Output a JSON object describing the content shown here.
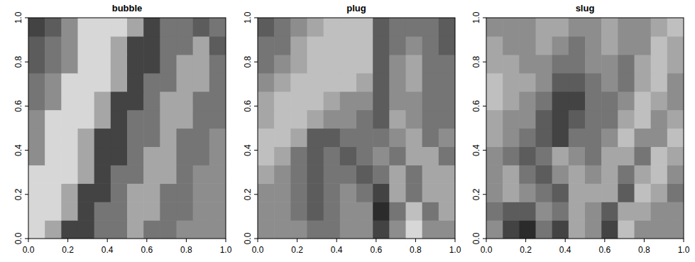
{
  "chart_data": [
    {
      "type": "heatmap",
      "title": "bubble",
      "xlim": [
        0,
        1
      ],
      "ylim": [
        0,
        1
      ],
      "zlim": [
        0,
        9
      ],
      "xticks": [
        {
          "value": 0,
          "label": "0.0"
        },
        {
          "value": 0.2,
          "label": "0.2"
        },
        {
          "value": 0.4,
          "label": "0.4"
        },
        {
          "value": 0.6,
          "label": "0.6"
        },
        {
          "value": 0.8,
          "label": "0.8"
        },
        {
          "value": 1,
          "label": "1.0"
        }
      ],
      "yticks": [
        {
          "value": 0,
          "label": "0.0"
        },
        {
          "value": 0.2,
          "label": "0.2"
        },
        {
          "value": 0.4,
          "label": "0.4"
        },
        {
          "value": 0.6,
          "label": "0.6"
        },
        {
          "value": 0.8,
          "label": "0.8"
        },
        {
          "value": 1,
          "label": "1.0"
        }
      ],
      "cells": [
        [
          8,
          6,
          2,
          2,
          4,
          4,
          6,
          4,
          4,
          5,
          5,
          5
        ],
        [
          8,
          8,
          6,
          2,
          4,
          4,
          6,
          6,
          4,
          4,
          5,
          5
        ],
        [
          8,
          8,
          6,
          2,
          2,
          4,
          6,
          6,
          4,
          4,
          5,
          5
        ],
        [
          8,
          8,
          8,
          6,
          2,
          4,
          4,
          6,
          6,
          4,
          5,
          5
        ],
        [
          5,
          8,
          8,
          6,
          2,
          2,
          4,
          6,
          6,
          4,
          4,
          5
        ],
        [
          5,
          8,
          8,
          6,
          2,
          2,
          4,
          4,
          6,
          4,
          4,
          5
        ],
        [
          5,
          8,
          8,
          8,
          6,
          2,
          4,
          4,
          6,
          6,
          4,
          4
        ],
        [
          4,
          5,
          8,
          8,
          6,
          2,
          2,
          4,
          6,
          6,
          4,
          4
        ],
        [
          4,
          5,
          8,
          8,
          8,
          6,
          2,
          4,
          4,
          6,
          6,
          4
        ],
        [
          3,
          4,
          5,
          8,
          8,
          6,
          2,
          2,
          4,
          6,
          6,
          4
        ],
        [
          3,
          4,
          5,
          8,
          8,
          6,
          2,
          2,
          4,
          4,
          6,
          3
        ],
        [
          2,
          3,
          5,
          8,
          8,
          8,
          6,
          2,
          4,
          4,
          3,
          4
        ]
      ]
    },
    {
      "type": "heatmap",
      "title": "plug",
      "xlim": [
        0,
        1
      ],
      "ylim": [
        0,
        1
      ],
      "zlim": [
        0,
        9
      ],
      "xticks": [
        {
          "value": 0,
          "label": "0.0"
        },
        {
          "value": 0.2,
          "label": "0.2"
        },
        {
          "value": 0.4,
          "label": "0.4"
        },
        {
          "value": 0.6,
          "label": "0.6"
        },
        {
          "value": 0.8,
          "label": "0.8"
        },
        {
          "value": 1,
          "label": "1.0"
        }
      ],
      "yticks": [
        {
          "value": 0,
          "label": "0.0"
        },
        {
          "value": 0.2,
          "label": "0.2"
        },
        {
          "value": 0.4,
          "label": "0.4"
        },
        {
          "value": 0.6,
          "label": "0.6"
        },
        {
          "value": 0.8,
          "label": "0.8"
        },
        {
          "value": 1,
          "label": "1.0"
        }
      ],
      "cells": [
        [
          5,
          5,
          5,
          4,
          4,
          5,
          5,
          2,
          5,
          8,
          5,
          5
        ],
        [
          5,
          5,
          4,
          3,
          4,
          5,
          5,
          1,
          4,
          7,
          4,
          6
        ],
        [
          5,
          5,
          4,
          3,
          4,
          5,
          4,
          2,
          6,
          4,
          6,
          6
        ],
        [
          6,
          5,
          4,
          3,
          4,
          4,
          3,
          4,
          6,
          4,
          6,
          6
        ],
        [
          7,
          6,
          4,
          3,
          4,
          3,
          4,
          5,
          4,
          6,
          6,
          4
        ],
        [
          7,
          7,
          6,
          3,
          3,
          4,
          4,
          4,
          5,
          6,
          4,
          5
        ],
        [
          6,
          7,
          7,
          6,
          5,
          5,
          4,
          3,
          6,
          5,
          4,
          4
        ],
        [
          6,
          7,
          7,
          7,
          6,
          5,
          5,
          3,
          5,
          5,
          4,
          4
        ],
        [
          5,
          6,
          7,
          7,
          7,
          7,
          6,
          3,
          5,
          6,
          4,
          4
        ],
        [
          4,
          5,
          6,
          7,
          7,
          7,
          7,
          3,
          5,
          6,
          4,
          4
        ],
        [
          4,
          4,
          6,
          7,
          7,
          7,
          7,
          3,
          4,
          5,
          4,
          3
        ],
        [
          3,
          4,
          5,
          6,
          7,
          7,
          7,
          3,
          4,
          4,
          4,
          3
        ]
      ]
    },
    {
      "type": "heatmap",
      "title": "slug",
      "xlim": [
        0,
        1
      ],
      "ylim": [
        0,
        1
      ],
      "zlim": [
        0,
        9
      ],
      "xticks": [
        {
          "value": 0,
          "label": "0.0"
        },
        {
          "value": 0.2,
          "label": "0.2"
        },
        {
          "value": 0.4,
          "label": "0.4"
        },
        {
          "value": 0.6,
          "label": "0.6"
        },
        {
          "value": 0.8,
          "label": "0.8"
        },
        {
          "value": 1,
          "label": "1.0"
        }
      ],
      "yticks": [
        {
          "value": 0,
          "label": "0.0"
        },
        {
          "value": 0.2,
          "label": "0.2"
        },
        {
          "value": 0.4,
          "label": "0.4"
        },
        {
          "value": 0.6,
          "label": "0.6"
        },
        {
          "value": 0.8,
          "label": "0.8"
        },
        {
          "value": 1,
          "label": "1.0"
        }
      ],
      "cells": [
        [
          5,
          2,
          1,
          4,
          2,
          6,
          5,
          2,
          7,
          5,
          5,
          5
        ],
        [
          4,
          3,
          3,
          5,
          4,
          6,
          5,
          3,
          6,
          6,
          5,
          5
        ],
        [
          5,
          6,
          5,
          4,
          3,
          6,
          6,
          6,
          3,
          7,
          6,
          4
        ],
        [
          5,
          6,
          4,
          3,
          5,
          6,
          5,
          6,
          4,
          6,
          7,
          5
        ],
        [
          5,
          4,
          3,
          4,
          6,
          5,
          4,
          6,
          6,
          4,
          7,
          6
        ],
        [
          6,
          5,
          4,
          3,
          2,
          4,
          4,
          5,
          7,
          5,
          5,
          7
        ],
        [
          6,
          5,
          5,
          3,
          2,
          3,
          4,
          4,
          6,
          7,
          5,
          6
        ],
        [
          7,
          6,
          5,
          4,
          2,
          2,
          4,
          4,
          5,
          7,
          6,
          5
        ],
        [
          7,
          6,
          6,
          5,
          3,
          3,
          4,
          5,
          4,
          6,
          7,
          5
        ],
        [
          6,
          6,
          5,
          5,
          4,
          4,
          5,
          5,
          4,
          6,
          7,
          6
        ],
        [
          6,
          5,
          5,
          6,
          5,
          4,
          5,
          6,
          5,
          5,
          7,
          6
        ],
        [
          5,
          5,
          5,
          6,
          6,
          5,
          5,
          6,
          5,
          5,
          6,
          7
        ]
      ]
    }
  ]
}
